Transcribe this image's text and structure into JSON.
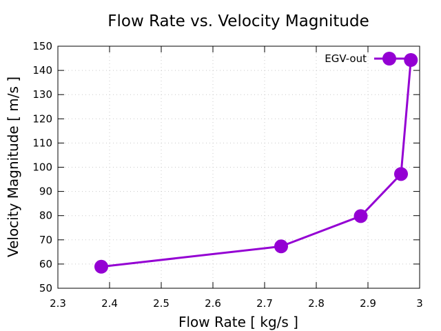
{
  "chart_data": {
    "type": "line",
    "title": "Flow Rate vs. Velocity Magnitude",
    "xlabel": "Flow Rate [ kg/s ]",
    "ylabel": "Velocity Magnitude [ m/s ]",
    "xlim": [
      2.3,
      3.0
    ],
    "ylim": [
      50,
      150
    ],
    "xticks": [
      2.3,
      2.4,
      2.5,
      2.6,
      2.7,
      2.8,
      2.9,
      3.0
    ],
    "xtick_labels": [
      "2.3",
      "2.4",
      "2.5",
      "2.6",
      "2.7",
      "2.8",
      "2.9",
      "3"
    ],
    "yticks": [
      50,
      60,
      70,
      80,
      90,
      100,
      110,
      120,
      130,
      140,
      150
    ],
    "ytick_labels": [
      "50",
      "60",
      "70",
      "80",
      "90",
      "100",
      "110",
      "120",
      "130",
      "140",
      "150"
    ],
    "grid": true,
    "legend_position": "top-right",
    "series": [
      {
        "name": "EGV-out",
        "color": "#9400d3",
        "marker": "circle",
        "x": [
          2.384,
          2.732,
          2.886,
          2.964,
          2.983
        ],
        "y": [
          58.9,
          67.3,
          79.8,
          97.2,
          144.3
        ]
      }
    ]
  }
}
